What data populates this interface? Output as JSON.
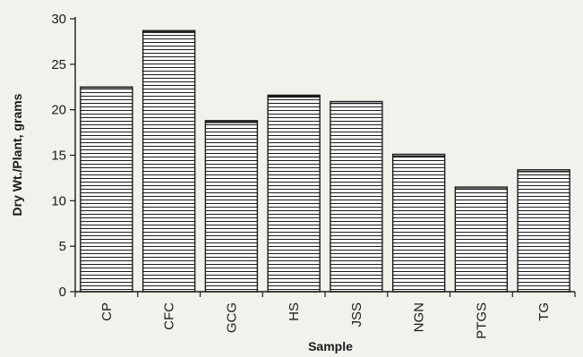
{
  "chart_data": {
    "type": "bar",
    "title": "",
    "xlabel": "Sample",
    "ylabel": "Dry Wt./Plant, grams",
    "categories": [
      "CP",
      "CFC",
      "GCG",
      "HS",
      "JSS",
      "NGN",
      "PTGS",
      "TG"
    ],
    "values": [
      22.5,
      28.7,
      18.8,
      21.6,
      20.9,
      15.1,
      11.5,
      13.4
    ],
    "ylim": [
      0,
      30
    ],
    "yticks": [
      0,
      5,
      10,
      15,
      20,
      25,
      30
    ],
    "grid": false,
    "legend": "none",
    "bar_pattern": "horizontal-hatch",
    "colors": {
      "ink": "#1a1a1a",
      "background": "#f3f1ec",
      "bar_fill": "#ffffff"
    }
  }
}
